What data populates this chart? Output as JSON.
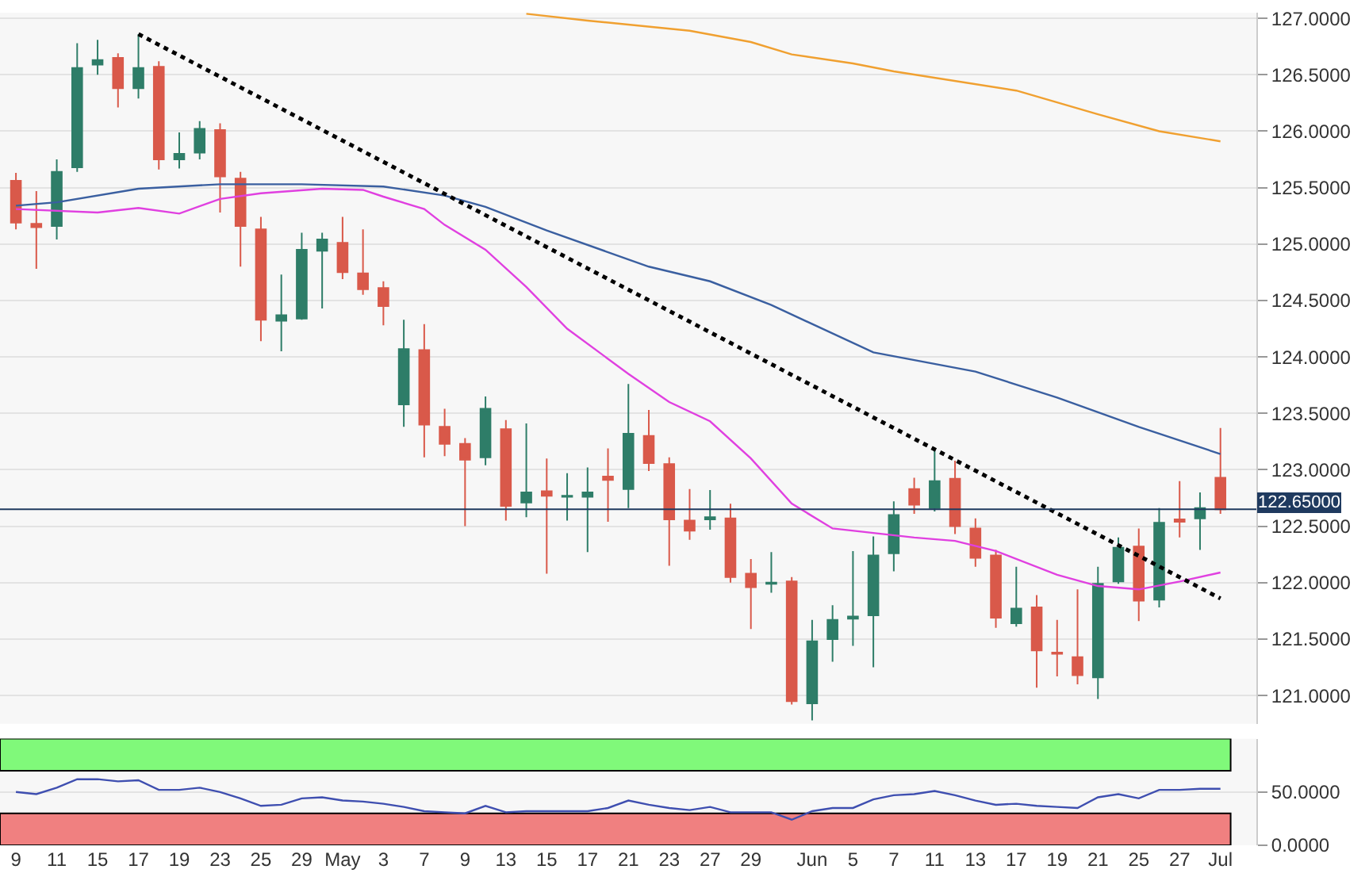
{
  "chart_data": [
    {
      "type": "candlestick",
      "categories": [
        null,
        null,
        null,
        null,
        null,
        null,
        null,
        null,
        null,
        null,
        null,
        null,
        null,
        null,
        null,
        null,
        null,
        null,
        null,
        null,
        null,
        null,
        null,
        null,
        null,
        null,
        null,
        null,
        null,
        null,
        null,
        null,
        null,
        null,
        null,
        null,
        null,
        null,
        null,
        null,
        null,
        null,
        null,
        null,
        null,
        null,
        null,
        null,
        null,
        null,
        null,
        null,
        null,
        null,
        null,
        null,
        null,
        null,
        null,
        null
      ],
      "ohlc": [
        [
          125.56,
          125.63,
          125.13,
          125.19
        ],
        [
          125.18,
          125.47,
          124.78,
          125.15
        ],
        [
          125.16,
          125.75,
          125.04,
          125.64
        ],
        [
          125.68,
          126.78,
          125.64,
          126.56
        ],
        [
          126.59,
          126.81,
          126.5,
          126.63
        ],
        [
          126.65,
          126.69,
          126.21,
          126.38
        ],
        [
          126.38,
          126.86,
          126.29,
          126.56
        ],
        [
          126.57,
          126.62,
          125.66,
          125.75
        ],
        [
          125.75,
          125.99,
          125.67,
          125.8
        ],
        [
          125.81,
          126.09,
          125.75,
          126.02
        ],
        [
          126.01,
          126.07,
          125.28,
          125.6
        ],
        [
          125.58,
          125.64,
          124.8,
          125.16
        ],
        [
          125.13,
          125.24,
          124.14,
          124.33
        ],
        [
          124.32,
          124.73,
          124.05,
          124.37
        ],
        [
          124.34,
          125.1,
          124.33,
          124.95
        ],
        [
          124.94,
          125.1,
          124.43,
          125.04
        ],
        [
          125.01,
          125.24,
          124.69,
          124.75
        ],
        [
          124.74,
          125.13,
          124.55,
          124.6
        ],
        [
          124.61,
          124.67,
          124.28,
          124.45
        ],
        [
          123.58,
          124.33,
          123.38,
          124.07
        ],
        [
          124.06,
          124.29,
          123.11,
          123.4
        ],
        [
          123.38,
          123.54,
          123.12,
          123.23
        ],
        [
          123.23,
          123.28,
          122.5,
          123.09
        ],
        [
          123.11,
          123.65,
          123.04,
          123.54
        ],
        [
          123.36,
          123.44,
          122.55,
          122.68
        ],
        [
          122.71,
          123.41,
          122.58,
          122.8
        ],
        [
          122.81,
          123.1,
          122.08,
          122.77
        ],
        [
          122.76,
          122.97,
          122.55,
          122.77
        ],
        [
          122.76,
          123.02,
          122.27,
          122.8
        ],
        [
          122.94,
          123.19,
          122.54,
          122.91
        ],
        [
          122.83,
          123.76,
          122.66,
          123.32
        ],
        [
          123.3,
          123.53,
          122.99,
          123.06
        ],
        [
          123.05,
          123.11,
          122.15,
          122.56
        ],
        [
          122.55,
          122.83,
          122.38,
          122.46
        ],
        [
          122.56,
          122.82,
          122.47,
          122.58
        ],
        [
          122.57,
          122.7,
          122.0,
          122.05
        ],
        [
          122.08,
          122.21,
          121.59,
          121.96
        ],
        [
          121.99,
          122.27,
          121.91,
          122.0
        ],
        [
          122.01,
          122.05,
          120.92,
          120.95
        ],
        [
          120.93,
          121.67,
          120.78,
          121.48
        ],
        [
          121.5,
          121.8,
          121.3,
          121.67
        ],
        [
          121.68,
          122.28,
          121.44,
          121.7
        ],
        [
          121.71,
          122.41,
          121.25,
          122.24
        ],
        [
          122.26,
          122.72,
          122.1,
          122.6
        ],
        [
          122.83,
          122.93,
          122.61,
          122.69
        ],
        [
          122.66,
          123.19,
          122.63,
          122.9
        ],
        [
          122.92,
          123.08,
          122.43,
          122.5
        ],
        [
          122.48,
          122.57,
          122.14,
          122.22
        ],
        [
          122.24,
          122.29,
          121.6,
          121.69
        ],
        [
          121.64,
          122.14,
          121.61,
          121.77
        ],
        [
          121.78,
          121.89,
          121.07,
          121.4
        ],
        [
          121.38,
          121.67,
          121.17,
          121.37
        ],
        [
          121.34,
          121.94,
          121.1,
          121.18
        ],
        [
          121.16,
          122.14,
          120.97,
          121.99
        ],
        [
          122.01,
          122.4,
          121.99,
          122.31
        ],
        [
          122.32,
          122.48,
          121.66,
          121.84
        ],
        [
          121.85,
          122.66,
          121.78,
          122.53
        ],
        [
          122.56,
          122.9,
          122.4,
          122.54
        ],
        [
          122.57,
          122.8,
          122.29,
          122.66
        ],
        [
          122.93,
          123.37,
          122.61,
          122.65
        ]
      ],
      "colors": [
        "#d9594a",
        "#d9594a",
        "#2e7d68",
        "#2e7d68",
        "#2e7d68",
        "#d9594a",
        "#2e7d68",
        "#d9594a",
        "#2e7d68",
        "#2e7d68",
        "#d9594a",
        "#d9594a",
        "#d9594a",
        "#2e7d68",
        "#2e7d68",
        "#2e7d68",
        "#d9594a",
        "#d9594a",
        "#d9594a",
        "#2e7d68",
        "#d9594a",
        "#d9594a",
        "#d9594a",
        "#2e7d68",
        "#d9594a",
        "#2e7d68",
        "#d9594a",
        "#2e7d68",
        "#2e7d68",
        "#d9594a",
        "#2e7d68",
        "#d9594a",
        "#d9594a",
        "#d9594a",
        "#2e7d68",
        "#d9594a",
        "#d9594a",
        "#2e7d68",
        "#d9594a",
        "#2e7d68",
        "#2e7d68",
        "#2e7d68",
        "#2e7d68",
        "#2e7d68",
        "#d9594a",
        "#2e7d68",
        "#d9594a",
        "#d9594a",
        "#d9594a",
        "#2e7d68",
        "#d9594a",
        "#d9594a",
        "#d9594a",
        "#2e7d68",
        "#2e7d68",
        "#d9594a",
        "#2e7d68",
        "#d9594a",
        "#2e7d68",
        "#d9594a"
      ],
      "series": [
        {
          "type": "line",
          "color": "#f0a030",
          "values": [
            null,
            null,
            null,
            null,
            null,
            null,
            null,
            null,
            null,
            null,
            null,
            null,
            null,
            null,
            null,
            null,
            null,
            null,
            null,
            null,
            null,
            null,
            null,
            null,
            null,
            127.04,
            null,
            null,
            126.98,
            null,
            null,
            null,
            null,
            126.89,
            null,
            null,
            126.79,
            null,
            126.68,
            null,
            null,
            126.6,
            null,
            126.53,
            null,
            null,
            null,
            null,
            null,
            126.36,
            null,
            null,
            null,
            126.15,
            null,
            null,
            126.0,
            null,
            null,
            125.91
          ]
        },
        {
          "type": "line",
          "color": "#3a5fa0",
          "values": [
            125.34,
            null,
            125.37,
            null,
            null,
            null,
            125.49,
            null,
            null,
            null,
            125.53,
            null,
            null,
            null,
            125.53,
            null,
            null,
            null,
            125.51,
            null,
            null,
            125.43,
            null,
            125.33,
            null,
            null,
            125.12,
            null,
            null,
            null,
            null,
            124.8,
            null,
            null,
            124.67,
            null,
            null,
            124.46,
            null,
            null,
            null,
            null,
            124.04,
            null,
            null,
            null,
            null,
            123.87,
            null,
            null,
            null,
            123.64,
            null,
            null,
            null,
            123.38,
            null,
            null,
            null,
            123.14
          ]
        },
        {
          "type": "line",
          "color": "#e040e0",
          "values": [
            125.31,
            null,
            null,
            null,
            125.28,
            null,
            125.32,
            null,
            125.27,
            null,
            125.4,
            null,
            125.45,
            null,
            null,
            125.49,
            null,
            125.48,
            125.42,
            null,
            125.31,
            125.17,
            null,
            124.95,
            null,
            124.62,
            null,
            124.25,
            null,
            null,
            123.85,
            null,
            123.6,
            null,
            123.43,
            null,
            123.1,
            null,
            122.7,
            null,
            122.48,
            null,
            null,
            null,
            122.4,
            null,
            122.37,
            null,
            122.28,
            null,
            null,
            122.07,
            null,
            121.97,
            null,
            121.94,
            null,
            122.01,
            null,
            122.09
          ]
        },
        {
          "type": "line",
          "color": "#000000",
          "line_style": "dotted",
          "values": [
            null,
            null,
            null,
            null,
            null,
            null,
            126.86,
            null,
            null,
            null,
            null,
            null,
            null,
            null,
            null,
            null,
            null,
            null,
            null,
            null,
            null,
            null,
            null,
            null,
            null,
            null,
            null,
            null,
            null,
            null,
            null,
            null,
            null,
            null,
            null,
            null,
            null,
            null,
            null,
            null,
            null,
            null,
            null,
            null,
            null,
            null,
            null,
            null,
            null,
            null,
            null,
            null,
            null,
            null,
            null,
            null,
            null,
            null,
            null,
            121.86
          ]
        }
      ],
      "ylim": [
        120.75,
        127.05
      ],
      "yticks": [
        {
          "value": 121,
          "label": "121.0000"
        },
        {
          "value": 121.5,
          "label": "121.5000"
        },
        {
          "value": 122,
          "label": "122.0000"
        },
        {
          "value": 122.5,
          "label": "122.5000"
        },
        {
          "value": 123,
          "label": "123.0000"
        },
        {
          "value": 123.5,
          "label": "123.5000"
        },
        {
          "value": 124,
          "label": "124.0000"
        },
        {
          "value": 124.5,
          "label": "124.5000"
        },
        {
          "value": 125,
          "label": "125.0000"
        },
        {
          "value": 125.5,
          "label": "125.5000"
        },
        {
          "value": 126,
          "label": "126.0000"
        },
        {
          "value": 126.5,
          "label": "126.5000"
        },
        {
          "value": 127,
          "label": "127.0000"
        }
      ],
      "ref_lines": [
        {
          "axis": "y",
          "value": 122.65,
          "label": "122.65000",
          "color": "#1f3a5f"
        }
      ],
      "grid": "y",
      "tick_labels": "y"
    },
    {
      "type": "line",
      "categories": [
        "9",
        null,
        "11",
        null,
        "15",
        null,
        "17",
        null,
        "19",
        null,
        "23",
        null,
        "25",
        null,
        "29",
        null,
        "May",
        null,
        "3",
        null,
        "7",
        null,
        "9",
        null,
        "13",
        null,
        "15",
        null,
        "17",
        null,
        "21",
        null,
        "23",
        null,
        "27",
        null,
        "29",
        null,
        null,
        "Jun",
        null,
        "5",
        null,
        "7",
        null,
        "11",
        null,
        "13",
        null,
        "17",
        null,
        "19",
        null,
        "21",
        null,
        "25",
        null,
        "27",
        null,
        "Jul"
      ],
      "series": [
        {
          "color": "#3f4fb0",
          "values": [
            50,
            48,
            54,
            62,
            62,
            60,
            61,
            52,
            52,
            54,
            50,
            44,
            37,
            38,
            44,
            45,
            42,
            41,
            39,
            36,
            32,
            31,
            30,
            37,
            31,
            32,
            32,
            32,
            32,
            35,
            42,
            38,
            35,
            33,
            36,
            31,
            31,
            31,
            24,
            32,
            35,
            35,
            43,
            47,
            48,
            51,
            47,
            42,
            38,
            39,
            37,
            36,
            35,
            45,
            48,
            44,
            52,
            52,
            53,
            53
          ]
        }
      ],
      "ylim": [
        0,
        100
      ],
      "yticks": [
        {
          "value": 0,
          "label": "0.0000"
        },
        {
          "value": 50,
          "label": "50.0000"
        }
      ],
      "bands": [
        {
          "axis": "y",
          "from": 70,
          "to": 100,
          "color": "#80f97a"
        },
        {
          "axis": "y",
          "from": 0,
          "to": 30,
          "color": "#f08080"
        }
      ],
      "grid": "y"
    }
  ]
}
